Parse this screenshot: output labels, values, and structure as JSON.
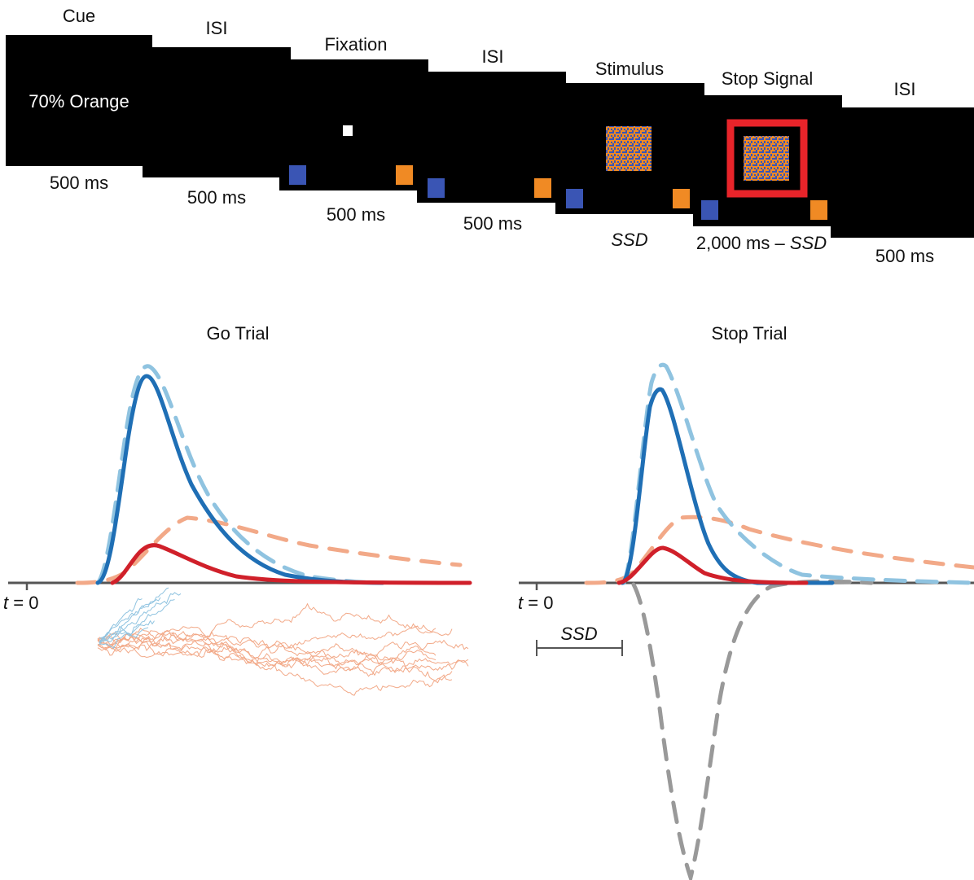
{
  "timeline": {
    "frames": [
      {
        "title": "Cue",
        "content_text": "70% Orange",
        "duration": "500 ms"
      },
      {
        "title": "ISI",
        "duration": "500 ms"
      },
      {
        "title": "Fixation",
        "duration": "500 ms"
      },
      {
        "title": "ISI",
        "duration": "500 ms"
      },
      {
        "title": "Stimulus",
        "duration": "SSD"
      },
      {
        "title": "Stop Signal",
        "duration_prefix": "2,000 ms – ",
        "duration_italic": "SSD"
      },
      {
        "title": "ISI",
        "duration": "500 ms"
      }
    ]
  },
  "panels": {
    "go": {
      "title": "Go Trial",
      "time_zero_t": "t",
      "time_zero_rest": " = 0"
    },
    "stop": {
      "title": "Stop Trial",
      "time_zero_t": "t",
      "time_zero_rest": " = 0",
      "ssd_label": "SSD"
    }
  },
  "colors": {
    "screen": "#000000",
    "blue_target": "#3a55b4",
    "orange_target": "#f08a24",
    "stop_signal": "#e8242a",
    "dark_blue": "#1f6fb5",
    "light_blue": "#8fc3e0",
    "red": "#d0202a",
    "salmon": "#f2a988",
    "gray": "#999999",
    "axis": "#555555"
  }
}
